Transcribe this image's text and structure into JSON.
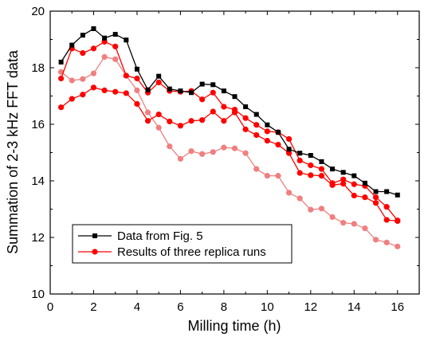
{
  "chart_data": {
    "type": "line",
    "title": "",
    "xlabel": "Milling time (h)",
    "ylabel": "Summation of 2-3 kHz FFT data",
    "xlim": [
      0,
      17
    ],
    "ylim": [
      10,
      20
    ],
    "xticks": [
      0,
      2,
      4,
      6,
      8,
      10,
      12,
      14,
      16
    ],
    "yticks": [
      10,
      12,
      14,
      16,
      18,
      20
    ],
    "grid": false,
    "legend_position": "bottom-left",
    "x": [
      0.5,
      1.0,
      1.5,
      2.0,
      2.5,
      3.0,
      3.5,
      4.0,
      4.5,
      5.0,
      5.5,
      6.0,
      6.5,
      7.0,
      7.5,
      8.0,
      8.5,
      9.0,
      9.5,
      10.0,
      10.5,
      11.0,
      11.5,
      12.0,
      12.5,
      13.0,
      13.5,
      14.0,
      14.5,
      15.0,
      15.5,
      16.0
    ],
    "series": [
      {
        "name": "Data from Fig. 5",
        "color": "#000000",
        "marker": "square",
        "values": [
          18.2,
          18.8,
          19.15,
          19.38,
          19.05,
          19.18,
          18.98,
          17.95,
          17.22,
          17.7,
          17.25,
          17.18,
          17.12,
          17.42,
          17.4,
          17.18,
          16.98,
          16.62,
          16.35,
          15.98,
          15.72,
          15.12,
          14.98,
          14.9,
          14.68,
          14.42,
          14.3,
          14.18,
          13.92,
          13.62,
          13.62,
          13.5
        ]
      },
      {
        "name": "Results of three replica runs",
        "color": "#ff0000",
        "marker": "circle",
        "values": [
          17.62,
          18.68,
          18.52,
          18.68,
          18.92,
          18.75,
          17.72,
          17.62,
          17.12,
          17.48,
          17.18,
          17.15,
          17.18,
          16.88,
          17.12,
          16.62,
          16.52,
          16.22,
          15.98,
          15.75,
          15.72,
          15.48,
          14.72,
          14.55,
          14.42,
          13.92,
          14.05,
          13.88,
          13.82,
          13.42,
          13.08,
          12.6
        ]
      },
      {
        "name": "",
        "color": "#ff0000",
        "marker": "circle",
        "values": [
          16.6,
          16.9,
          17.05,
          17.3,
          17.2,
          17.15,
          17.1,
          16.72,
          16.12,
          16.35,
          16.1,
          15.95,
          16.12,
          16.15,
          16.45,
          16.12,
          16.42,
          15.82,
          15.62,
          15.42,
          15.28,
          14.98,
          14.28,
          14.2,
          14.18,
          13.85,
          13.9,
          13.48,
          13.42,
          13.22,
          12.62,
          12.58
        ]
      },
      {
        "name": "",
        "color": "#f07f7f",
        "marker": "circle",
        "values": [
          17.85,
          17.55,
          17.6,
          17.8,
          18.38,
          18.3,
          17.72,
          17.2,
          16.42,
          15.88,
          15.22,
          14.78,
          15.05,
          14.95,
          15.02,
          15.18,
          15.15,
          14.98,
          14.42,
          14.18,
          14.18,
          13.58,
          13.38,
          12.98,
          13.02,
          12.72,
          12.52,
          12.48,
          12.32,
          11.92,
          11.82,
          11.68
        ]
      }
    ]
  }
}
